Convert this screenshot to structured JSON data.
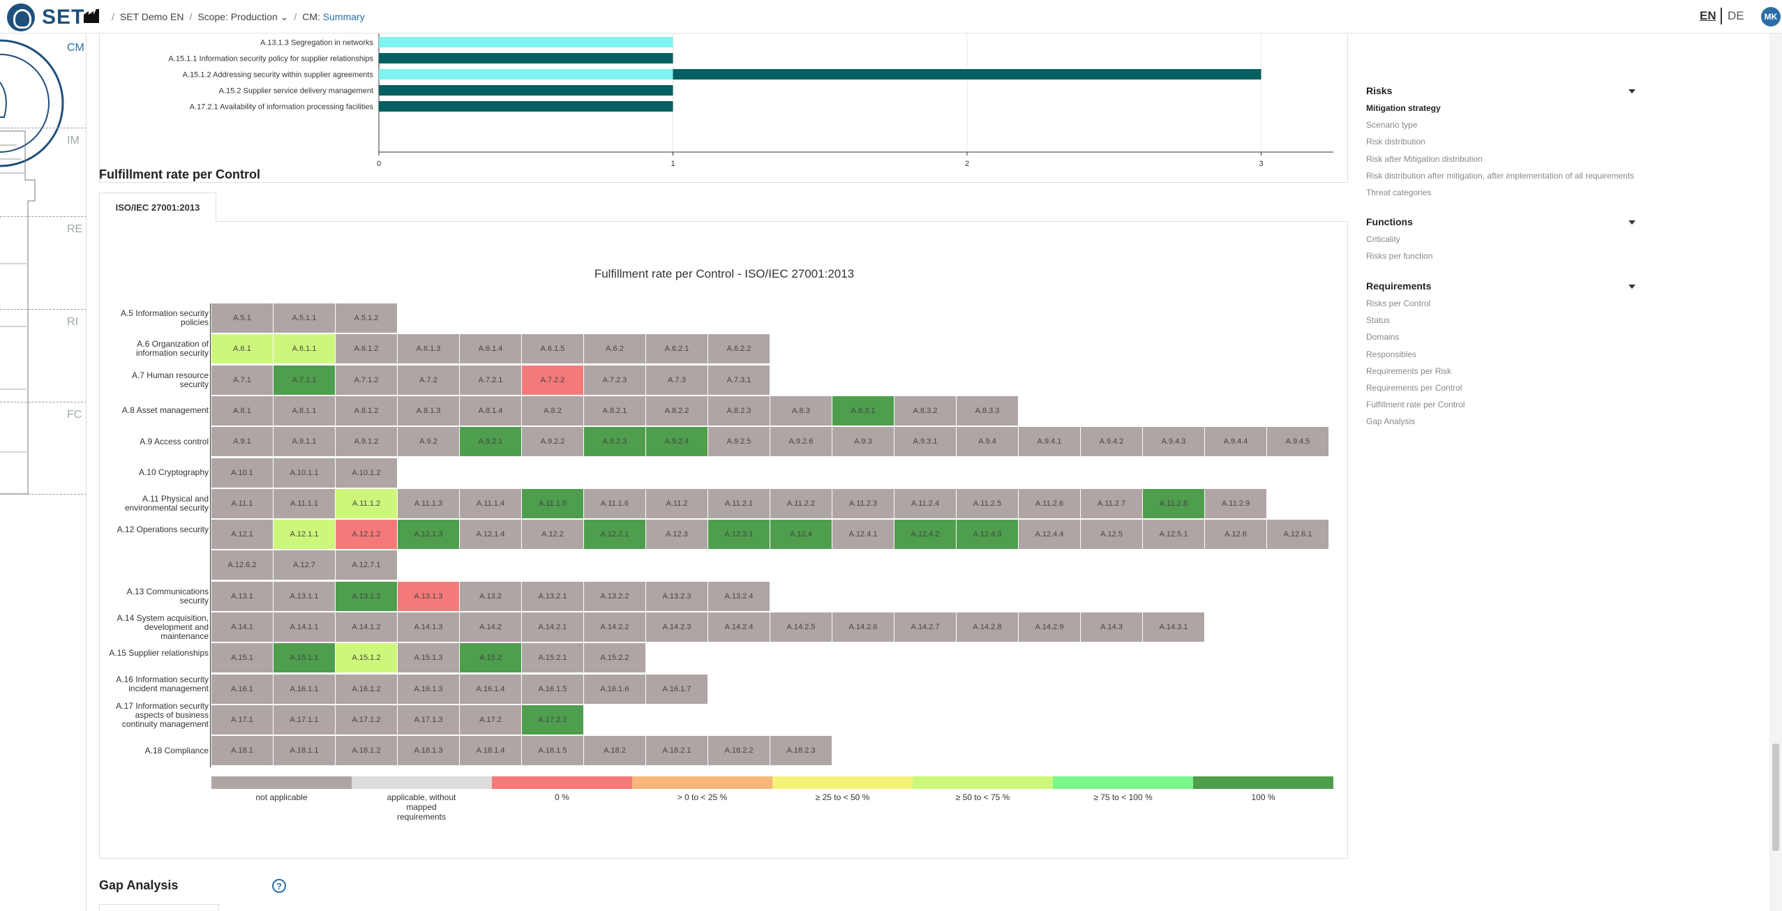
{
  "header": {
    "logo_text": "SET",
    "breadcrumb": {
      "project": "SET Demo EN",
      "scope": "Scope: Production",
      "cm_prefix": "CM:",
      "cm_value": "Summary"
    },
    "lang_en": "EN",
    "lang_de": "DE",
    "avatar": "MK"
  },
  "rail": {
    "labels": [
      "CM",
      "IM",
      "RE",
      "RI",
      "FC"
    ]
  },
  "top_chart": {
    "type": "bar",
    "categories": [
      "A.13.1.3 Segregation in networks",
      "A.15.1.1 Information security policy for supplier relationships",
      "A.15.1.2 Addressing security within supplier agreements",
      "A.15.2 Supplier service delivery management",
      "A.17.2.1 Availability of information processing facilities"
    ],
    "series": [
      {
        "values": [
          1,
          0,
          1,
          0,
          0
        ],
        "color": "#7ff2f2"
      },
      {
        "values": [
          0,
          1,
          2,
          1,
          1
        ],
        "color": "#046060"
      }
    ],
    "xticks": [
      "0",
      "1",
      "2",
      "3"
    ],
    "xlim": [
      0,
      3.3
    ]
  },
  "fulfillment": {
    "section_title": "Fulfillment rate per Control",
    "tab": "ISO/IEC 27001:2013",
    "chart_data": {
      "type": "heatmap",
      "title": "Fulfillment rate per Control - ISO/IEC 27001:2013",
      "rows": [
        {
          "label": "A.5 Information security policies",
          "cells": [
            [
              "A.5.1",
              "na"
            ],
            [
              "A.5.1.1",
              "na"
            ],
            [
              "A.5.1.2",
              "na"
            ]
          ]
        },
        {
          "label": "A.6 Organization of information security",
          "cells": [
            [
              "A.6.1",
              "p50"
            ],
            [
              "A.6.1.1",
              "p50"
            ],
            [
              "A.6.1.2",
              "na"
            ],
            [
              "A.6.1.3",
              "na"
            ],
            [
              "A.6.1.4",
              "na"
            ],
            [
              "A.6.1.5",
              "na"
            ],
            [
              "A.6.2",
              "na"
            ],
            [
              "A.6.2.1",
              "na"
            ],
            [
              "A.6.2.2",
              "na"
            ]
          ]
        },
        {
          "label": "A.7 Human resource security",
          "cells": [
            [
              "A.7.1",
              "na"
            ],
            [
              "A.7.1.1",
              "p100"
            ],
            [
              "A.7.1.2",
              "na"
            ],
            [
              "A.7.2",
              "na"
            ],
            [
              "A.7.2.1",
              "na"
            ],
            [
              "A.7.2.2",
              "p0"
            ],
            [
              "A.7.2.3",
              "na"
            ],
            [
              "A.7.3",
              "na"
            ],
            [
              "A.7.3.1",
              "na"
            ]
          ]
        },
        {
          "label": "A.8 Asset management",
          "cells": [
            [
              "A.8.1",
              "na"
            ],
            [
              "A.8.1.1",
              "na"
            ],
            [
              "A.8.1.2",
              "na"
            ],
            [
              "A.8.1.3",
              "na"
            ],
            [
              "A.8.1.4",
              "na"
            ],
            [
              "A.8.2",
              "na"
            ],
            [
              "A.8.2.1",
              "na"
            ],
            [
              "A.8.2.2",
              "na"
            ],
            [
              "A.8.2.3",
              "na"
            ],
            [
              "A.8.3",
              "na"
            ],
            [
              "A.8.3.1",
              "p100"
            ],
            [
              "A.8.3.2",
              "na"
            ],
            [
              "A.8.3.3",
              "na"
            ]
          ]
        },
        {
          "label": "A.9 Access control",
          "cells": [
            [
              "A.9.1",
              "na"
            ],
            [
              "A.9.1.1",
              "na"
            ],
            [
              "A.9.1.2",
              "na"
            ],
            [
              "A.9.2",
              "na"
            ],
            [
              "A.9.2.1",
              "p100"
            ],
            [
              "A.9.2.2",
              "na"
            ],
            [
              "A.9.2.3",
              "p100"
            ],
            [
              "A.9.2.4",
              "p100"
            ],
            [
              "A.9.2.5",
              "na"
            ],
            [
              "A.9.2.6",
              "na"
            ],
            [
              "A.9.3",
              "na"
            ],
            [
              "A.9.3.1",
              "na"
            ],
            [
              "A.9.4",
              "na"
            ],
            [
              "A.9.4.1",
              "na"
            ],
            [
              "A.9.4.2",
              "na"
            ],
            [
              "A.9.4.3",
              "na"
            ],
            [
              "A.9.4.4",
              "na"
            ],
            [
              "A.9.4.5",
              "na"
            ]
          ]
        },
        {
          "label": "A.10 Cryptography",
          "cells": [
            [
              "A.10.1",
              "na"
            ],
            [
              "A.10.1.1",
              "na"
            ],
            [
              "A.10.1.2",
              "na"
            ]
          ]
        },
        {
          "label": "A.11 Physical and environmental security",
          "cells": [
            [
              "A.11.1",
              "na"
            ],
            [
              "A.11.1.1",
              "na"
            ],
            [
              "A.11.1.2",
              "p50"
            ],
            [
              "A.11.1.3",
              "na"
            ],
            [
              "A.11.1.4",
              "na"
            ],
            [
              "A.11.1.5",
              "p100"
            ],
            [
              "A.11.1.6",
              "na"
            ],
            [
              "A.11.2",
              "na"
            ],
            [
              "A.11.2.1",
              "na"
            ],
            [
              "A.11.2.2",
              "na"
            ],
            [
              "A.11.2.3",
              "na"
            ],
            [
              "A.11.2.4",
              "na"
            ],
            [
              "A.11.2.5",
              "na"
            ],
            [
              "A.11.2.6",
              "na"
            ],
            [
              "A.11.2.7",
              "na"
            ],
            [
              "A.11.2.8",
              "p100"
            ],
            [
              "A.11.2.9",
              "na"
            ]
          ]
        },
        {
          "label": "A.12 Operations security",
          "cells": [
            [
              "A.12.1",
              "na"
            ],
            [
              "A.12.1.1",
              "p50"
            ],
            [
              "A.12.1.2",
              "p0"
            ],
            [
              "A.12.1.3",
              "p100"
            ],
            [
              "A.12.1.4",
              "na"
            ],
            [
              "A.12.2",
              "na"
            ],
            [
              "A.12.2.1",
              "p100"
            ],
            [
              "A.12.3",
              "na"
            ],
            [
              "A.12.3.1",
              "p100"
            ],
            [
              "A.12.4",
              "p100"
            ],
            [
              "A.12.4.1",
              "na"
            ],
            [
              "A.12.4.2",
              "p100"
            ],
            [
              "A.12.4.3",
              "p100"
            ],
            [
              "A.12.4.4",
              "na"
            ],
            [
              "A.12.5",
              "na"
            ],
            [
              "A.12.5.1",
              "na"
            ],
            [
              "A.12.6",
              "na"
            ],
            [
              "A.12.6.1",
              "na"
            ]
          ]
        },
        {
          "label": "",
          "cells": [
            [
              "A.12.6.2",
              "na"
            ],
            [
              "A.12.7",
              "na"
            ],
            [
              "A.12.7.1",
              "na"
            ]
          ]
        },
        {
          "label": "A.13 Communications security",
          "cells": [
            [
              "A.13.1",
              "na"
            ],
            [
              "A.13.1.1",
              "na"
            ],
            [
              "A.13.1.2",
              "p100"
            ],
            [
              "A.13.1.3",
              "p0"
            ],
            [
              "A.13.2",
              "na"
            ],
            [
              "A.13.2.1",
              "na"
            ],
            [
              "A.13.2.2",
              "na"
            ],
            [
              "A.13.2.3",
              "na"
            ],
            [
              "A.13.2.4",
              "na"
            ]
          ]
        },
        {
          "label": "A.14 System acquisition, development and maintenance",
          "cells": [
            [
              "A.14.1",
              "na"
            ],
            [
              "A.14.1.1",
              "na"
            ],
            [
              "A.14.1.2",
              "na"
            ],
            [
              "A.14.1.3",
              "na"
            ],
            [
              "A.14.2",
              "na"
            ],
            [
              "A.14.2.1",
              "na"
            ],
            [
              "A.14.2.2",
              "na"
            ],
            [
              "A.14.2.3",
              "na"
            ],
            [
              "A.14.2.4",
              "na"
            ],
            [
              "A.14.2.5",
              "na"
            ],
            [
              "A.14.2.6",
              "na"
            ],
            [
              "A.14.2.7",
              "na"
            ],
            [
              "A.14.2.8",
              "na"
            ],
            [
              "A.14.2.9",
              "na"
            ],
            [
              "A.14.3",
              "na"
            ],
            [
              "A.14.3.1",
              "na"
            ]
          ]
        },
        {
          "label": "A.15 Supplier relationships",
          "cells": [
            [
              "A.15.1",
              "na"
            ],
            [
              "A.15.1.1",
              "p100"
            ],
            [
              "A.15.1.2",
              "p50"
            ],
            [
              "A.15.1.3",
              "na"
            ],
            [
              "A.15.2",
              "p100"
            ],
            [
              "A.15.2.1",
              "na"
            ],
            [
              "A.15.2.2",
              "na"
            ]
          ]
        },
        {
          "label": "A.16 Information security incident management",
          "cells": [
            [
              "A.16.1",
              "na"
            ],
            [
              "A.16.1.1",
              "na"
            ],
            [
              "A.16.1.2",
              "na"
            ],
            [
              "A.16.1.3",
              "na"
            ],
            [
              "A.16.1.4",
              "na"
            ],
            [
              "A.16.1.5",
              "na"
            ],
            [
              "A.16.1.6",
              "na"
            ],
            [
              "A.16.1.7",
              "na"
            ]
          ]
        },
        {
          "label": "A.17 Information security aspects of business continuity management",
          "cells": [
            [
              "A.17.1",
              "na"
            ],
            [
              "A.17.1.1",
              "na"
            ],
            [
              "A.17.1.2",
              "na"
            ],
            [
              "A.17.1.3",
              "na"
            ],
            [
              "A.17.2",
              "na"
            ],
            [
              "A.17.2.1",
              "p100"
            ]
          ]
        },
        {
          "label": "A.18 Compliance",
          "cells": [
            [
              "A.18.1",
              "na"
            ],
            [
              "A.18.1.1",
              "na"
            ],
            [
              "A.18.1.2",
              "na"
            ],
            [
              "A.18.1.3",
              "na"
            ],
            [
              "A.18.1.4",
              "na"
            ],
            [
              "A.18.1.5",
              "na"
            ],
            [
              "A.18.2",
              "na"
            ],
            [
              "A.18.2.1",
              "na"
            ],
            [
              "A.18.2.2",
              "na"
            ],
            [
              "A.18.2.3",
              "na"
            ]
          ]
        }
      ],
      "legend": [
        {
          "key": "na",
          "label": "not applicable",
          "color": "#afa5a5"
        },
        {
          "key": "nm",
          "label": "applicable, without mapped requirements",
          "color": "#dcdcdc"
        },
        {
          "key": "p0",
          "label": "0 %",
          "color": "#f47a7a"
        },
        {
          "key": "p1",
          "label": "> 0 to < 25 %",
          "color": "#f7b77a"
        },
        {
          "key": "p25",
          "label": "≥ 25 to < 50 %",
          "color": "#f5f27a"
        },
        {
          "key": "p50",
          "label": "≥ 50 to < 75 %",
          "color": "#cdf77a"
        },
        {
          "key": "p75",
          "label": "≥ 75 to < 100 %",
          "color": "#7af78a"
        },
        {
          "key": "p100",
          "label": "100 %",
          "color": "#4e9e4e"
        }
      ]
    }
  },
  "gap_title": "Gap Analysis",
  "right_nav": {
    "groups": [
      {
        "title": "Risks",
        "items": [
          "Mitigation strategy",
          "Scenario type",
          "Risk distribution",
          "Risk after Mitigation distribution",
          "Risk distribution after mitigation, after implementation of all requirements",
          "Threat categories"
        ]
      },
      {
        "title": "Functions",
        "items": [
          "Criticality",
          "Risks per function"
        ]
      },
      {
        "title": "Requirements",
        "items": [
          "Risks per Control",
          "Status",
          "Domains",
          "Responsibles",
          "Requirements per Risk",
          "Requirements per Control",
          "Fulfillment rate per Control",
          "Gap Analysis"
        ]
      }
    ],
    "selected": "Mitigation strategy"
  }
}
